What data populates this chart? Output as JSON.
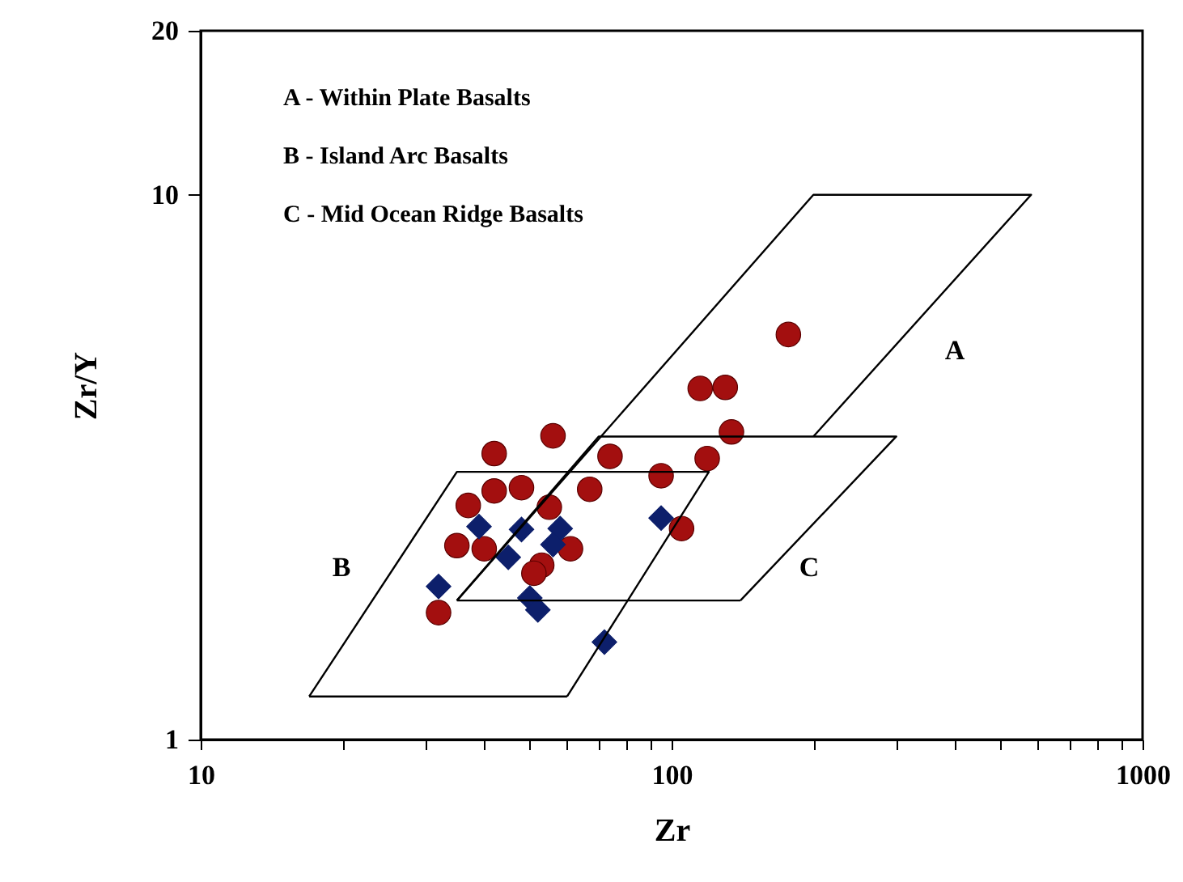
{
  "chart_data": {
    "type": "scatter",
    "xlabel": "Zr",
    "ylabel": "Zr/Y",
    "log": "xy",
    "grid": false,
    "xlim": [
      10,
      1000
    ],
    "ylim": [
      1,
      20
    ],
    "xticks": [
      10,
      {
        "value": 20,
        "label": null
      },
      {
        "value": 30,
        "label": null
      },
      {
        "value": 40,
        "label": null
      },
      {
        "value": 50,
        "label": null
      },
      {
        "value": 60,
        "label": null
      },
      {
        "value": 70,
        "label": null
      },
      {
        "value": 80,
        "label": null
      },
      {
        "value": 90,
        "label": null
      },
      100,
      {
        "value": 200,
        "label": null
      },
      {
        "value": 300,
        "label": null
      },
      {
        "value": 400,
        "label": null
      },
      {
        "value": 500,
        "label": null
      },
      {
        "value": 600,
        "label": null
      },
      {
        "value": 700,
        "label": null
      },
      {
        "value": 800,
        "label": null
      },
      {
        "value": 900,
        "label": null
      },
      1000
    ],
    "yticks": [
      1,
      10,
      20
    ],
    "annotations": [
      "A - Within Plate Basalts",
      "B - Island Arc Basalts",
      "C - Mid Ocean Ridge Basalts",
      "A",
      "B",
      "C"
    ],
    "series": [
      {
        "type": "scatter",
        "marker": "circle",
        "color": "#a30f0f",
        "x": [
          177,
          115,
          130,
          134,
          56,
          42,
          74,
          119,
          95,
          67,
          42,
          48,
          37,
          55,
          105,
          35,
          40,
          61,
          53,
          51,
          32
        ],
        "values": [
          5.54,
          4.41,
          4.43,
          3.67,
          3.61,
          3.35,
          3.31,
          3.28,
          3.05,
          2.88,
          2.86,
          2.9,
          2.69,
          2.67,
          2.44,
          2.27,
          2.24,
          2.24,
          2.09,
          2.02,
          1.71
        ]
      },
      {
        "type": "scatter",
        "marker": "diamond",
        "color": "#0d1f6b",
        "x": [
          95,
          39,
          48,
          58,
          56,
          45,
          32,
          50,
          52,
          72
        ],
        "values": [
          2.55,
          2.46,
          2.43,
          2.44,
          2.28,
          2.16,
          1.91,
          1.82,
          1.73,
          1.51
        ]
      },
      {
        "type": "line",
        "marker": "none",
        "color": "#000000",
        "x": [
          35,
          200,
          580,
          200
        ],
        "values": [
          1.8,
          10,
          10,
          3.6
        ]
      },
      {
        "type": "line",
        "marker": "none",
        "color": "#000000",
        "x": [
          35,
          70,
          300,
          140
        ],
        "values": [
          1.8,
          3.6,
          3.6,
          1.8
        ]
      },
      {
        "type": "line",
        "marker": "none",
        "color": "#000000",
        "x": [
          35,
          140
        ],
        "values": [
          1.8,
          1.8
        ]
      },
      {
        "type": "line",
        "marker": "none",
        "color": "#000000",
        "x": [
          17,
          35,
          120,
          60
        ],
        "values": [
          1.2,
          3.1,
          3.1,
          1.2
        ]
      },
      {
        "type": "line",
        "marker": "none",
        "color": "#000000",
        "x": [
          17,
          60
        ],
        "values": [
          1.2,
          1.2
        ]
      }
    ]
  }
}
